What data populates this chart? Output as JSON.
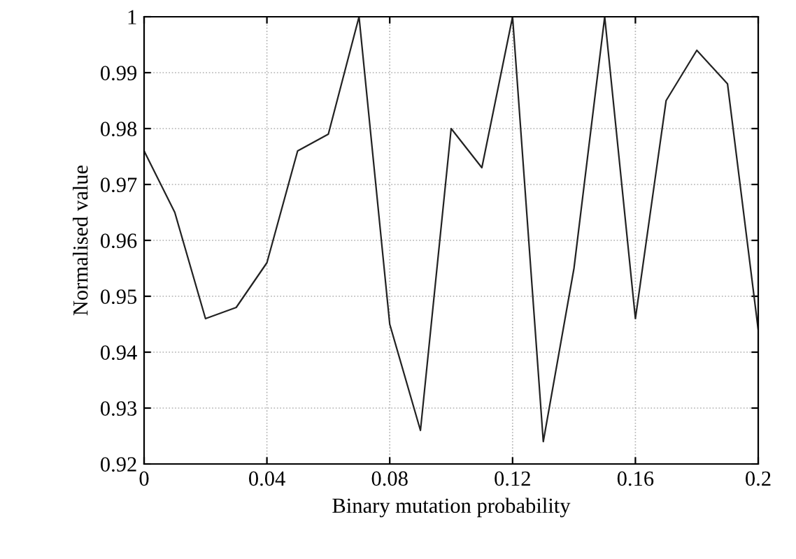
{
  "chart_data": {
    "type": "line",
    "xlabel": "Binary mutation probability",
    "ylabel": "Normalised value",
    "x": [
      0,
      0.01,
      0.02,
      0.03,
      0.04,
      0.05,
      0.06,
      0.07,
      0.08,
      0.09,
      0.1,
      0.11,
      0.12,
      0.13,
      0.14,
      0.15,
      0.16,
      0.17,
      0.18,
      0.19,
      0.2
    ],
    "series": [
      {
        "color": "#222222",
        "values": [
          0.976,
          0.965,
          0.946,
          0.948,
          0.956,
          0.976,
          0.979,
          1.0,
          0.945,
          0.926,
          0.98,
          0.973,
          1.0,
          0.924,
          0.955,
          1.0,
          0.946,
          0.985,
          0.994,
          0.988,
          0.944
        ]
      }
    ],
    "xlim": [
      0,
      0.2
    ],
    "ylim": [
      0.92,
      1
    ],
    "xticks": [
      0,
      0.04,
      0.08,
      0.12,
      0.16,
      0.2
    ],
    "yticks": [
      0.92,
      0.93,
      0.94,
      0.95,
      0.96,
      0.97,
      0.98,
      0.99,
      1
    ],
    "grid": true,
    "marker": "none",
    "line_style": "solid"
  }
}
